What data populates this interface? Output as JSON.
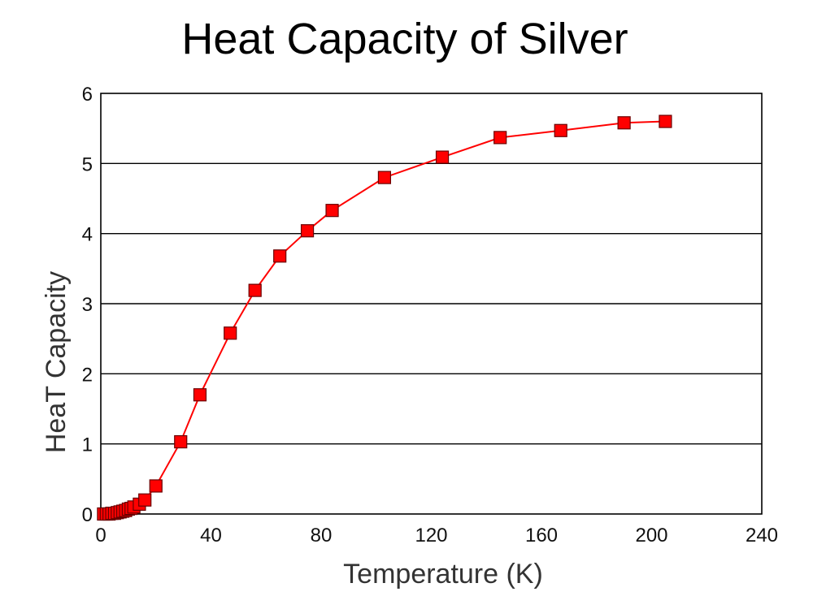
{
  "chart_data": {
    "type": "line",
    "title": "Heat Capacity of Silver",
    "xlabel": "Temperature (K)",
    "ylabel": "HeaT Capacity",
    "xlim": [
      0,
      240
    ],
    "ylim": [
      0,
      6
    ],
    "x_ticks": [
      "0",
      "40",
      "80",
      "120",
      "160",
      "200",
      "240"
    ],
    "y_ticks": [
      "0",
      "1",
      "2",
      "3",
      "4",
      "5",
      "6"
    ],
    "grid": "horizontal",
    "legend": "none",
    "series": [
      {
        "color": "#ff0000",
        "marker": "square",
        "points": [
          {
            "x": 1,
            "y": 0.0
          },
          {
            "x": 2,
            "y": 0.0
          },
          {
            "x": 3,
            "y": 0.0
          },
          {
            "x": 4,
            "y": 0.01
          },
          {
            "x": 5,
            "y": 0.01
          },
          {
            "x": 6,
            "y": 0.02
          },
          {
            "x": 7,
            "y": 0.03
          },
          {
            "x": 8,
            "y": 0.04
          },
          {
            "x": 9,
            "y": 0.05
          },
          {
            "x": 10,
            "y": 0.07
          },
          {
            "x": 11,
            "y": 0.08
          },
          {
            "x": 12,
            "y": 0.1
          },
          {
            "x": 14,
            "y": 0.14
          },
          {
            "x": 16,
            "y": 0.2
          },
          {
            "x": 20,
            "y": 0.4
          },
          {
            "x": 29,
            "y": 1.03
          },
          {
            "x": 36,
            "y": 1.7
          },
          {
            "x": 47,
            "y": 2.58
          },
          {
            "x": 56,
            "y": 3.19
          },
          {
            "x": 65,
            "y": 3.68
          },
          {
            "x": 75,
            "y": 4.04
          },
          {
            "x": 84,
            "y": 4.33
          },
          {
            "x": 103,
            "y": 4.8
          },
          {
            "x": 124,
            "y": 5.09
          },
          {
            "x": 145,
            "y": 5.37
          },
          {
            "x": 167,
            "y": 5.47
          },
          {
            "x": 190,
            "y": 5.58
          },
          {
            "x": 205,
            "y": 5.6
          }
        ]
      }
    ]
  }
}
